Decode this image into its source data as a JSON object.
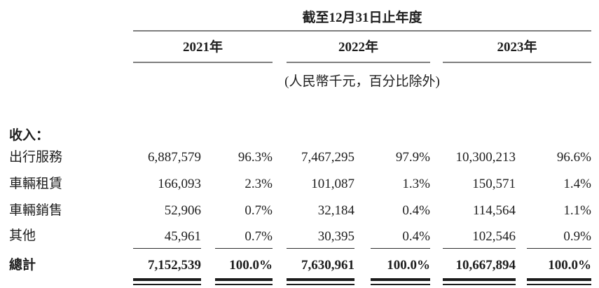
{
  "table": {
    "period_header": "截至12月31日止年度",
    "year_headers": [
      "2021年",
      "2022年",
      "2023年"
    ],
    "unit_note": "(人民幣千元，百分比除外)",
    "section_label": "收入：",
    "rows": [
      {
        "label": "出行服務",
        "values": [
          "6,887,579",
          "96.3%",
          "7,467,295",
          "97.9%",
          "10,300,213",
          "96.6%"
        ]
      },
      {
        "label": "車輛租賃",
        "values": [
          "166,093",
          "2.3%",
          "101,087",
          "1.3%",
          "150,571",
          "1.4%"
        ]
      },
      {
        "label": "車輛銷售",
        "values": [
          "52,906",
          "0.7%",
          "32,184",
          "0.4%",
          "114,564",
          "1.1%"
        ]
      },
      {
        "label": "其他",
        "values": [
          "45,961",
          "0.7%",
          "30,395",
          "0.4%",
          "102,546",
          "0.9%"
        ]
      }
    ],
    "total_row": {
      "label": "總計",
      "values": [
        "7,152,539",
        "100.0%",
        "7,630,961",
        "100.0%",
        "10,667,894",
        "100.0%"
      ]
    },
    "colors": {
      "text": "#1e1e1e",
      "header_rule": "#7e7e7e",
      "thin_rule": "#2e2e2e",
      "total_double_rule": "#1b1b1b"
    }
  }
}
